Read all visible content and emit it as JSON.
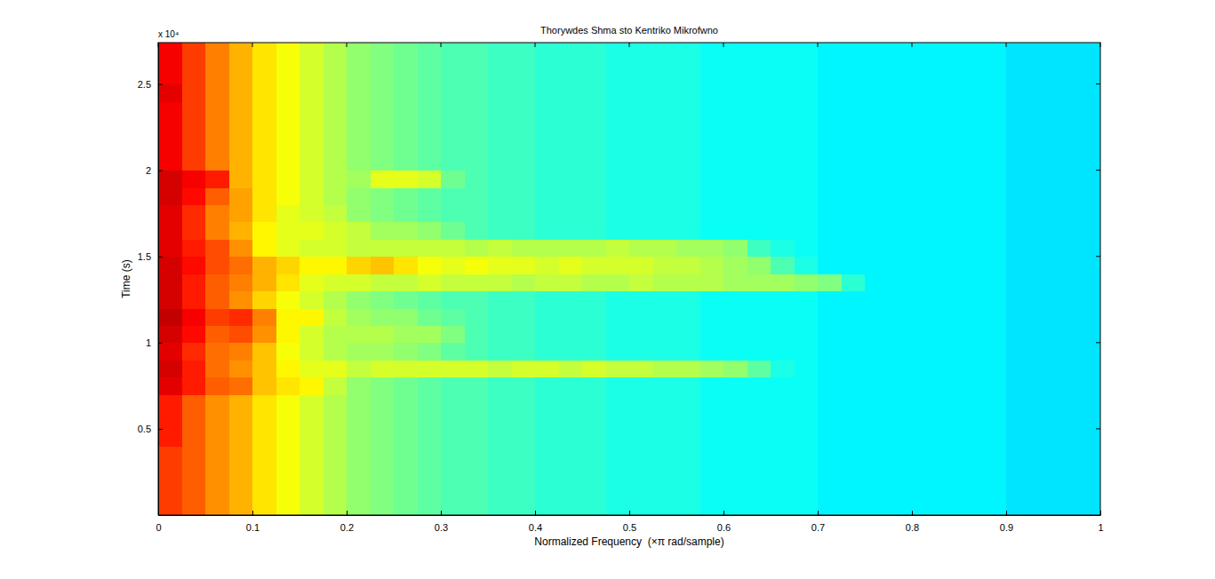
{
  "chart_data": {
    "type": "heatmap",
    "title": "Thorywdes Shma sto Kentriko Mikrofwno",
    "x_label": "Normalized Frequency  (×π rad/sample)",
    "y_label": "Time (s)",
    "y_scale_label": "x 10⁴",
    "xlim": [
      0,
      1
    ],
    "ylim": [
      0,
      2.74
    ],
    "xticks": [
      0,
      0.1,
      0.2,
      0.3,
      0.4,
      0.5,
      0.6,
      0.7,
      0.8,
      0.9,
      1
    ],
    "yticks": [
      0.5,
      1,
      1.5,
      2,
      2.5
    ],
    "zlim": [
      -80,
      -20
    ],
    "x_edges": [
      0,
      0.025,
      0.05,
      0.075,
      0.1,
      0.125,
      0.15,
      0.175,
      0.2,
      0.225,
      0.25,
      0.275,
      0.3,
      0.325,
      0.35,
      0.375,
      0.4,
      0.425,
      0.45,
      0.475,
      0.5,
      0.525,
      0.55,
      0.575,
      0.6,
      0.625,
      0.65,
      0.675,
      0.7,
      0.725,
      0.75,
      0.775,
      0.8,
      0.825,
      0.85,
      0.875,
      0.9,
      0.925,
      0.95,
      0.975,
      1
    ],
    "y_edges": [
      0,
      0.1,
      0.2,
      0.3,
      0.4,
      0.5,
      0.6,
      0.7,
      0.8,
      0.9,
      1,
      1.1,
      1.2,
      1.3,
      1.4,
      1.5,
      1.6,
      1.7,
      1.8,
      1.9,
      2,
      2.1,
      2.2,
      2.3,
      2.4,
      2.5,
      2.6,
      2.7,
      2.74
    ],
    "z": [
      [
        -31,
        -33,
        -36,
        -38,
        -41,
        -43,
        -45,
        -47,
        -49,
        -50,
        -51,
        -52,
        -53,
        -53,
        -54,
        -54,
        -55,
        -55,
        -55,
        -56,
        -56,
        -56,
        -56,
        -57,
        -57,
        -57,
        -57,
        -57,
        -58,
        -58,
        -58,
        -58,
        -58,
        -58,
        -58,
        -58,
        -59,
        -59,
        -59,
        -59
      ],
      [
        -31,
        -33,
        -36,
        -38,
        -41,
        -43,
        -45,
        -47,
        -49,
        -50,
        -51,
        -52,
        -53,
        -53,
        -54,
        -54,
        -55,
        -55,
        -55,
        -56,
        -56,
        -56,
        -56,
        -57,
        -57,
        -57,
        -57,
        -57,
        -58,
        -58,
        -58,
        -58,
        -58,
        -58,
        -58,
        -58,
        -59,
        -59,
        -59,
        -59
      ],
      [
        -31,
        -33,
        -36,
        -38,
        -41,
        -43,
        -45,
        -47,
        -49,
        -50,
        -51,
        -52,
        -53,
        -53,
        -54,
        -54,
        -55,
        -55,
        -55,
        -56,
        -56,
        -56,
        -56,
        -57,
        -57,
        -57,
        -57,
        -57,
        -58,
        -58,
        -58,
        -58,
        -58,
        -58,
        -58,
        -58,
        -59,
        -59,
        -59,
        -59
      ],
      [
        -31,
        -33,
        -36,
        -38,
        -41,
        -43,
        -45,
        -47,
        -49,
        -50,
        -51,
        -52,
        -53,
        -53,
        -54,
        -54,
        -55,
        -55,
        -55,
        -56,
        -56,
        -56,
        -56,
        -57,
        -57,
        -57,
        -57,
        -57,
        -58,
        -58,
        -58,
        -58,
        -58,
        -58,
        -58,
        -58,
        -59,
        -59,
        -59,
        -59
      ],
      [
        -29,
        -33,
        -36,
        -38,
        -41,
        -43,
        -45,
        -47,
        -49,
        -50,
        -51,
        -52,
        -53,
        -53,
        -54,
        -54,
        -55,
        -55,
        -55,
        -56,
        -56,
        -56,
        -56,
        -57,
        -57,
        -57,
        -57,
        -57,
        -58,
        -58,
        -58,
        -58,
        -58,
        -58,
        -58,
        -58,
        -59,
        -59,
        -59,
        -59
      ],
      [
        -29,
        -33,
        -36,
        -38,
        -41,
        -43,
        -45,
        -47,
        -49,
        -50,
        -51,
        -52,
        -53,
        -53,
        -54,
        -54,
        -55,
        -55,
        -55,
        -56,
        -56,
        -56,
        -56,
        -57,
        -57,
        -57,
        -57,
        -57,
        -58,
        -58,
        -58,
        -58,
        -58,
        -58,
        -58,
        -58,
        -59,
        -59,
        -59,
        -59
      ],
      [
        -29,
        -33,
        -36,
        -38,
        -41,
        -43,
        -45,
        -47,
        -49,
        -50,
        -51,
        -52,
        -53,
        -53,
        -54,
        -54,
        -55,
        -55,
        -55,
        -56,
        -56,
        -56,
        -56,
        -57,
        -57,
        -57,
        -57,
        -57,
        -58,
        -58,
        -58,
        -58,
        -58,
        -58,
        -58,
        -58,
        -59,
        -59,
        -59,
        -59
      ],
      [
        -26,
        -29,
        -33,
        -34,
        -39,
        -41,
        -42,
        -46,
        -49,
        -50,
        -51,
        -52,
        -53,
        -53,
        -54,
        -54,
        -55,
        -55,
        -55,
        -56,
        -56,
        -56,
        -56,
        -57,
        -57,
        -57,
        -57,
        -57,
        -58,
        -58,
        -58,
        -58,
        -58,
        -58,
        -58,
        -58,
        -59,
        -59,
        -59,
        -59
      ],
      [
        -25,
        -29,
        -34,
        -36,
        -39,
        -42,
        -44,
        -44,
        -46,
        -45,
        -45,
        -45,
        -45,
        -45,
        -46,
        -45,
        -45,
        -46,
        -45,
        -46,
        -46,
        -47,
        -47,
        -48,
        -49,
        -52,
        -56,
        -57,
        -58,
        -58,
        -58,
        -58,
        -58,
        -58,
        -58,
        -58,
        -59,
        -59,
        -59,
        -59
      ],
      [
        -26,
        -30,
        -34,
        -35,
        -39,
        -43,
        -45,
        -47,
        -48,
        -48,
        -49,
        -50,
        -52,
        -53,
        -54,
        -54,
        -55,
        -55,
        -55,
        -56,
        -56,
        -56,
        -56,
        -57,
        -57,
        -57,
        -57,
        -57,
        -58,
        -58,
        -58,
        -58,
        -58,
        -58,
        -58,
        -58,
        -59,
        -59,
        -59,
        -59
      ],
      [
        -25,
        -28,
        -33,
        -32,
        -36,
        -42,
        -45,
        -47,
        -47,
        -47,
        -48,
        -48,
        -50,
        -53,
        -54,
        -54,
        -55,
        -55,
        -55,
        -56,
        -56,
        -56,
        -56,
        -57,
        -57,
        -57,
        -57,
        -57,
        -58,
        -58,
        -58,
        -58,
        -58,
        -58,
        -58,
        -58,
        -59,
        -59,
        -59,
        -59
      ],
      [
        -24,
        -27,
        -31,
        -30,
        -35,
        -42,
        -42,
        -46,
        -48,
        -49,
        -49,
        -51,
        -52,
        -53,
        -54,
        -54,
        -55,
        -55,
        -55,
        -56,
        -56,
        -56,
        -56,
        -57,
        -57,
        -57,
        -57,
        -57,
        -58,
        -58,
        -58,
        -58,
        -58,
        -58,
        -58,
        -58,
        -59,
        -59,
        -59,
        -59
      ],
      [
        -25,
        -29,
        -33,
        -36,
        -40,
        -43,
        -45,
        -47,
        -49,
        -50,
        -51,
        -52,
        -53,
        -53,
        -54,
        -54,
        -55,
        -55,
        -55,
        -56,
        -56,
        -56,
        -56,
        -57,
        -57,
        -57,
        -57,
        -57,
        -58,
        -58,
        -58,
        -58,
        -58,
        -58,
        -58,
        -58,
        -59,
        -59,
        -59,
        -59
      ],
      [
        -25,
        -29,
        -33,
        -35,
        -38,
        -41,
        -44,
        -45,
        -45,
        -46,
        -46,
        -45,
        -46,
        -46,
        -46,
        -47,
        -46,
        -46,
        -47,
        -47,
        -46,
        -47,
        -47,
        -47,
        -48,
        -48,
        -48,
        -49,
        -50,
        -55,
        -58,
        -58,
        -58,
        -58,
        -58,
        -58,
        -59,
        -59,
        -59,
        -59
      ],
      [
        -25,
        -28,
        -32,
        -34,
        -38,
        -40,
        -42,
        -42,
        -40,
        -39,
        -41,
        -43,
        -44,
        -43,
        -44,
        -44,
        -45,
        -44,
        -45,
        -45,
        -45,
        -46,
        -46,
        -47,
        -48,
        -49,
        -53,
        -56,
        -58,
        -58,
        -58,
        -58,
        -58,
        -58,
        -58,
        -58,
        -59,
        -59,
        -59,
        -59
      ],
      [
        -26,
        -29,
        -32,
        -36,
        -42,
        -44,
        -45,
        -45,
        -46,
        -46,
        -46,
        -46,
        -46,
        -47,
        -46,
        -47,
        -47,
        -47,
        -47,
        -46,
        -47,
        -47,
        -48,
        -48,
        -49,
        -54,
        -56,
        -57,
        -58,
        -58,
        -58,
        -58,
        -58,
        -58,
        -58,
        -58,
        -59,
        -59,
        -59,
        -59
      ],
      [
        -26,
        -30,
        -35,
        -38,
        -42,
        -44,
        -44,
        -45,
        -46,
        -48,
        -48,
        -49,
        -51,
        -53,
        -54,
        -54,
        -55,
        -55,
        -55,
        -56,
        -56,
        -56,
        -56,
        -57,
        -57,
        -57,
        -57,
        -57,
        -58,
        -58,
        -58,
        -58,
        -58,
        -58,
        -58,
        -58,
        -59,
        -59,
        -59,
        -59
      ],
      [
        -26,
        -30,
        -35,
        -37,
        -41,
        -44,
        -45,
        -46,
        -49,
        -50,
        -51,
        -52,
        -53,
        -53,
        -54,
        -54,
        -55,
        -55,
        -55,
        -56,
        -56,
        -56,
        -56,
        -57,
        -57,
        -57,
        -57,
        -57,
        -58,
        -58,
        -58,
        -58,
        -58,
        -58,
        -58,
        -58,
        -59,
        -59,
        -59,
        -59
      ],
      [
        -25,
        -28,
        -33,
        -37,
        -41,
        -43,
        -45,
        -47,
        -49,
        -50,
        -51,
        -52,
        -53,
        -53,
        -54,
        -54,
        -55,
        -55,
        -55,
        -56,
        -56,
        -56,
        -56,
        -57,
        -57,
        -57,
        -57,
        -57,
        -58,
        -58,
        -58,
        -58,
        -58,
        -58,
        -58,
        -58,
        -59,
        -59,
        -59,
        -59
      ],
      [
        -25,
        -27,
        -29,
        -38,
        -41,
        -43,
        -45,
        -47,
        -48,
        -44,
        -44,
        -45,
        -51,
        -53,
        -54,
        -54,
        -55,
        -55,
        -55,
        -56,
        -56,
        -56,
        -56,
        -57,
        -57,
        -57,
        -57,
        -57,
        -58,
        -58,
        -58,
        -58,
        -58,
        -58,
        -58,
        -58,
        -59,
        -59,
        -59,
        -59
      ],
      [
        -27,
        -31,
        -35,
        -38,
        -41,
        -43,
        -45,
        -47,
        -49,
        -50,
        -51,
        -52,
        -53,
        -53,
        -54,
        -54,
        -55,
        -55,
        -55,
        -56,
        -56,
        -56,
        -56,
        -57,
        -57,
        -57,
        -57,
        -57,
        -58,
        -58,
        -58,
        -58,
        -58,
        -58,
        -58,
        -58,
        -59,
        -59,
        -59,
        -59
      ],
      [
        -27,
        -31,
        -35,
        -38,
        -41,
        -43,
        -45,
        -47,
        -49,
        -50,
        -51,
        -52,
        -53,
        -53,
        -54,
        -54,
        -55,
        -55,
        -55,
        -56,
        -56,
        -56,
        -56,
        -57,
        -57,
        -57,
        -57,
        -57,
        -58,
        -58,
        -58,
        -58,
        -58,
        -58,
        -58,
        -58,
        -59,
        -59,
        -59,
        -59
      ],
      [
        -27,
        -31,
        -35,
        -38,
        -41,
        -43,
        -45,
        -47,
        -49,
        -50,
        -51,
        -52,
        -53,
        -53,
        -54,
        -54,
        -55,
        -55,
        -55,
        -56,
        -56,
        -56,
        -56,
        -57,
        -57,
        -57,
        -57,
        -57,
        -58,
        -58,
        -58,
        -58,
        -58,
        -58,
        -58,
        -58,
        -59,
        -59,
        -59,
        -59
      ],
      [
        -27,
        -31,
        -35,
        -38,
        -41,
        -43,
        -45,
        -47,
        -49,
        -50,
        -51,
        -52,
        -53,
        -53,
        -54,
        -54,
        -55,
        -55,
        -55,
        -56,
        -56,
        -56,
        -56,
        -57,
        -57,
        -57,
        -57,
        -57,
        -58,
        -58,
        -58,
        -58,
        -58,
        -58,
        -58,
        -58,
        -59,
        -59,
        -59,
        -59
      ],
      [
        -26,
        -31,
        -35,
        -38,
        -41,
        -43,
        -45,
        -47,
        -49,
        -50,
        -51,
        -52,
        -53,
        -53,
        -54,
        -54,
        -55,
        -55,
        -55,
        -56,
        -56,
        -56,
        -56,
        -57,
        -57,
        -57,
        -57,
        -57,
        -58,
        -58,
        -58,
        -58,
        -58,
        -58,
        -58,
        -58,
        -59,
        -59,
        -59,
        -59
      ],
      [
        -27,
        -31,
        -35,
        -38,
        -41,
        -43,
        -45,
        -47,
        -49,
        -50,
        -51,
        -52,
        -53,
        -53,
        -54,
        -54,
        -55,
        -55,
        -55,
        -56,
        -56,
        -56,
        -56,
        -57,
        -57,
        -57,
        -57,
        -57,
        -58,
        -58,
        -58,
        -58,
        -58,
        -58,
        -58,
        -58,
        -59,
        -59,
        -59,
        -59
      ],
      [
        -27,
        -31,
        -35,
        -38,
        -41,
        -43,
        -45,
        -47,
        -49,
        -50,
        -51,
        -52,
        -53,
        -53,
        -54,
        -54,
        -55,
        -55,
        -55,
        -56,
        -56,
        -56,
        -56,
        -57,
        -57,
        -57,
        -57,
        -57,
        -58,
        -58,
        -58,
        -58,
        -58,
        -58,
        -58,
        -58,
        -59,
        -59,
        -59,
        -59
      ],
      [
        -27,
        -31,
        -35,
        -38,
        -41,
        -43,
        -45,
        -47,
        -49,
        -50,
        -51,
        -52,
        -53,
        -53,
        -54,
        -54,
        -55,
        -55,
        -55,
        -56,
        -56,
        -56,
        -56,
        -57,
        -57,
        -57,
        -57,
        -57,
        -58,
        -58,
        -58,
        -58,
        -58,
        -58,
        -58,
        -58,
        -59,
        -59,
        -59,
        -59
      ]
    ]
  }
}
